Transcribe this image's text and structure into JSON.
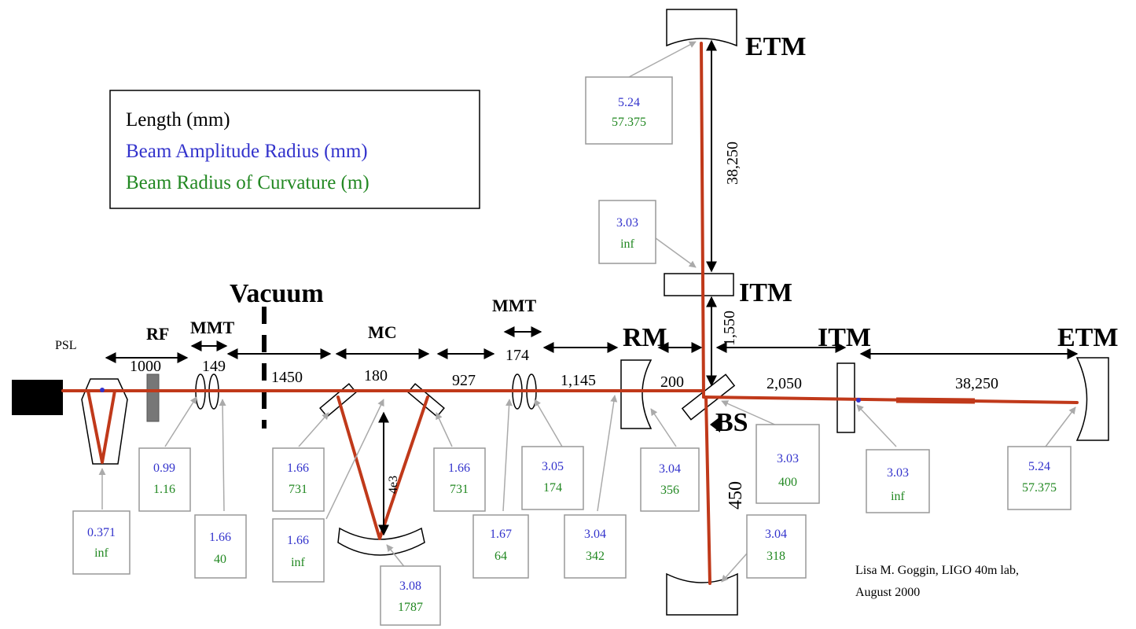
{
  "legend": {
    "length": "Length (mm)",
    "amplitude": "Beam Amplitude Radius (mm)",
    "curvature": "Beam Radius of Curvature (m)"
  },
  "colors": {
    "beam": "#c0391a",
    "amplitude": "#3333cc",
    "curvature": "#228822",
    "box_border": "#999999",
    "pointer": "#aaaaaa"
  },
  "labels": {
    "etm_top": "ETM",
    "itm_top": "ITM",
    "itm_right": "ITM",
    "etm_right": "ETM",
    "rm": "RM",
    "bs": "BS",
    "vacuum": "Vacuum",
    "psl": "PSL",
    "rf": "RF",
    "mmt1": "MMT",
    "mc": "MC",
    "mmt2": "MMT"
  },
  "lengths": {
    "rf_span": "1000",
    "mmt1_span": "149",
    "vac_span": "1450",
    "mc_span": "180",
    "d927": "927",
    "mmt2_span": "174",
    "d1145": "1,145",
    "d200": "200",
    "d2050": "2,050",
    "arm_right": "38,250",
    "arm_top": "38,250",
    "d1550": "1,550",
    "d450": "450",
    "mc_vert": "4e3"
  },
  "boxes": [
    {
      "id": "etm-top",
      "amp": "5.24",
      "curv": "57.375"
    },
    {
      "id": "itm-top",
      "amp": "3.03",
      "curv": "inf"
    },
    {
      "id": "psl",
      "amp": "0.371",
      "curv": "inf"
    },
    {
      "id": "mmt1-lens1",
      "amp": "0.99",
      "curv": "1.16"
    },
    {
      "id": "mmt1-lens2",
      "amp": "1.66",
      "curv": "40"
    },
    {
      "id": "mc-mirror1",
      "amp": "1.66",
      "curv": "731"
    },
    {
      "id": "mc-flat",
      "amp": "1.66",
      "curv": "inf"
    },
    {
      "id": "mc-curved",
      "amp": "3.08",
      "curv": "1787"
    },
    {
      "id": "mc-mirror2",
      "amp": "1.66",
      "curv": "731"
    },
    {
      "id": "mmt2-lens1",
      "amp": "1.67",
      "curv": "64"
    },
    {
      "id": "mmt2-lens2",
      "amp": "3.05",
      "curv": "174"
    },
    {
      "id": "rm-entry",
      "amp": "3.04",
      "curv": "342"
    },
    {
      "id": "rm",
      "amp": "3.04",
      "curv": "356"
    },
    {
      "id": "bs",
      "amp": "3.03",
      "curv": "400"
    },
    {
      "id": "itm-right",
      "amp": "3.03",
      "curv": "inf"
    },
    {
      "id": "etm-right",
      "amp": "5.24",
      "curv": "57.375"
    },
    {
      "id": "bottom-mirror",
      "amp": "3.04",
      "curv": "318"
    }
  ],
  "credit": {
    "line1": "Lisa M. Goggin, LIGO 40m lab,",
    "line2": "August 2000"
  }
}
